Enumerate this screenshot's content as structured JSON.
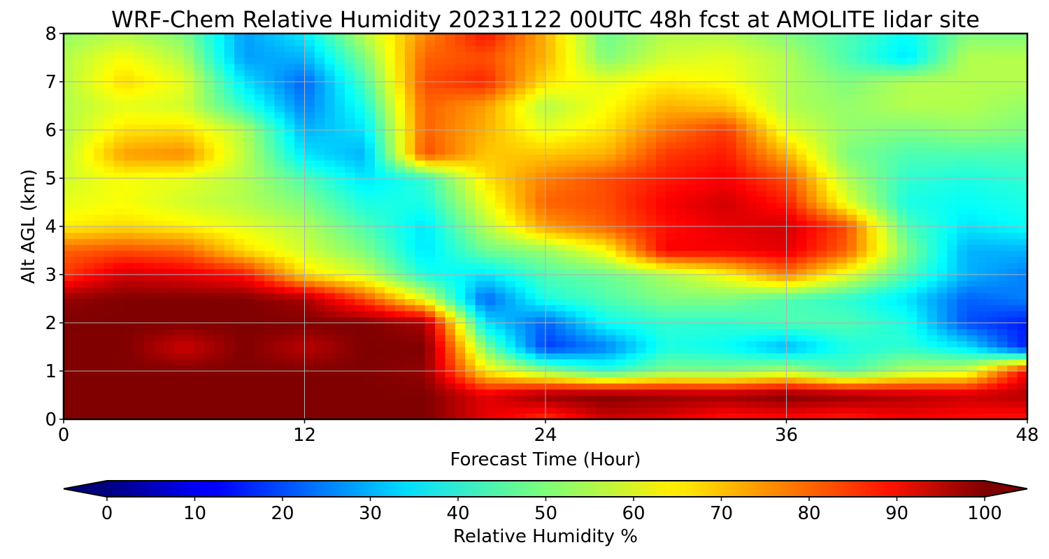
{
  "chart_data": {
    "type": "heatmap",
    "title": "WRF-Chem Relative Humidity 20231122 00UTC 48h fcst at AMOLITE lidar site",
    "xlabel": "Forecast Time (Hour)",
    "ylabel": "Alt AGL (km)",
    "xlim": [
      0,
      48
    ],
    "ylim": [
      0,
      8
    ],
    "x_ticks": [
      0,
      12,
      24,
      36,
      48
    ],
    "x_tick_labels": [
      "0",
      "12",
      "24",
      "36",
      "48"
    ],
    "y_ticks": [
      0,
      1,
      2,
      3,
      4,
      5,
      6,
      7,
      8
    ],
    "y_tick_labels": [
      "0",
      "1",
      "2",
      "3",
      "4",
      "5",
      "6",
      "7",
      "8"
    ],
    "grid": true,
    "colormap": "jet",
    "colorbar": {
      "label": "Relative Humidity %",
      "range": [
        0,
        100
      ],
      "extend": "both",
      "ticks": [
        0,
        10,
        20,
        30,
        40,
        50,
        60,
        70,
        80,
        90,
        100
      ],
      "tick_labels": [
        "0",
        "10",
        "20",
        "30",
        "40",
        "50",
        "60",
        "70",
        "80",
        "90",
        "100"
      ]
    },
    "x": [
      0,
      3,
      6,
      9,
      12,
      15,
      18,
      21,
      24,
      27,
      30,
      33,
      36,
      39,
      42,
      45,
      48
    ],
    "y": [
      0,
      0.5,
      1,
      1.5,
      2,
      2.5,
      3,
      3.5,
      4,
      4.5,
      5,
      5.5,
      6,
      6.5,
      7,
      7.5,
      8
    ],
    "z": [
      [
        100,
        100,
        100,
        100,
        100,
        100,
        100,
        90,
        82,
        92,
        90,
        85,
        86,
        84,
        88,
        86,
        85
      ],
      [
        100,
        100,
        100,
        100,
        100,
        100,
        100,
        90,
        98,
        100,
        98,
        97,
        100,
        98,
        95,
        93,
        95
      ],
      [
        100,
        100,
        100,
        100,
        100,
        100,
        98,
        64,
        52,
        42,
        50,
        50,
        55,
        45,
        55,
        58,
        88
      ],
      [
        100,
        100,
        92,
        100,
        94,
        100,
        100,
        50,
        18,
        25,
        40,
        38,
        30,
        40,
        42,
        35,
        15
      ],
      [
        100,
        100,
        100,
        100,
        100,
        100,
        96,
        35,
        22,
        38,
        42,
        42,
        45,
        45,
        40,
        20,
        15
      ],
      [
        98,
        100,
        100,
        100,
        96,
        80,
        60,
        22,
        40,
        45,
        50,
        50,
        45,
        42,
        35,
        22,
        25
      ],
      [
        82,
        92,
        90,
        86,
        66,
        58,
        40,
        35,
        45,
        48,
        54,
        62,
        75,
        60,
        45,
        30,
        25
      ],
      [
        78,
        80,
        78,
        66,
        58,
        50,
        35,
        48,
        52,
        62,
        88,
        88,
        90,
        78,
        50,
        30,
        30
      ],
      [
        64,
        66,
        64,
        60,
        55,
        45,
        35,
        55,
        72,
        78,
        86,
        90,
        92,
        80,
        45,
        35,
        38
      ],
      [
        60,
        62,
        58,
        55,
        50,
        40,
        40,
        60,
        78,
        80,
        88,
        92,
        85,
        60,
        40,
        38,
        40
      ],
      [
        58,
        62,
        60,
        55,
        45,
        35,
        42,
        65,
        75,
        80,
        85,
        88,
        80,
        55,
        42,
        40,
        42
      ],
      [
        56,
        72,
        74,
        56,
        35,
        30,
        80,
        68,
        68,
        70,
        82,
        85,
        70,
        50,
        45,
        45,
        45
      ],
      [
        55,
        65,
        66,
        55,
        30,
        35,
        78,
        70,
        60,
        65,
        76,
        82,
        60,
        52,
        50,
        52,
        50
      ],
      [
        55,
        60,
        58,
        42,
        25,
        40,
        78,
        72,
        55,
        62,
        70,
        68,
        55,
        52,
        55,
        55,
        52
      ],
      [
        55,
        66,
        60,
        35,
        22,
        45,
        80,
        84,
        65,
        60,
        64,
        62,
        55,
        50,
        55,
        55,
        55
      ],
      [
        55,
        62,
        55,
        28,
        30,
        50,
        78,
        80,
        70,
        50,
        58,
        60,
        55,
        45,
        35,
        55,
        55
      ],
      [
        52,
        55,
        50,
        28,
        36,
        56,
        74,
        86,
        70,
        48,
        55,
        55,
        50,
        45,
        38,
        50,
        50
      ]
    ]
  }
}
